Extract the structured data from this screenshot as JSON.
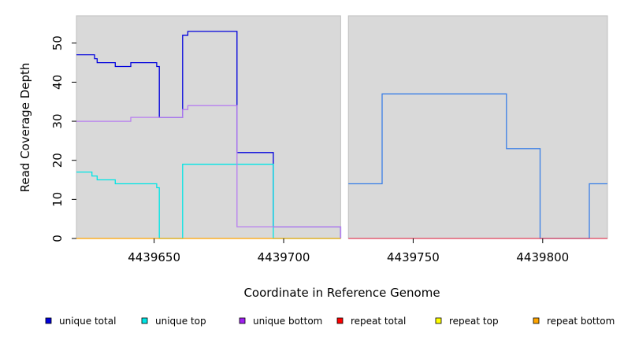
{
  "chart_data": {
    "type": "line",
    "step": true,
    "title": "",
    "xlabel": "Coordinate in Reference Genome",
    "ylabel": "Read Coverage Depth",
    "xlim": [
      4439620,
      4439825
    ],
    "ylim": [
      0,
      57
    ],
    "x_ticks": [
      4439650,
      4439700,
      4439750,
      4439800
    ],
    "y_ticks": [
      0,
      10,
      20,
      30,
      40,
      50
    ],
    "background": "#d9d9d9",
    "gap_region": [
      4439722,
      4439725
    ],
    "legend_position": "bottom",
    "legend": [
      {
        "name": "unique total",
        "color": "#0000dd"
      },
      {
        "name": "unique top",
        "color": "#00e5e5"
      },
      {
        "name": "unique bottom",
        "color": "#a020f0"
      },
      {
        "name": "repeat total",
        "color": "#ff0000"
      },
      {
        "name": "repeat top",
        "color": "#ffff00"
      },
      {
        "name": "repeat bottom",
        "color": "#ffa500"
      }
    ],
    "series": [
      {
        "key": "unique_total_left",
        "color": "#0000dd",
        "points": [
          [
            4439620,
            47
          ],
          [
            4439627,
            46
          ],
          [
            4439628,
            45
          ],
          [
            4439635,
            44
          ],
          [
            4439641,
            45
          ],
          [
            4439651,
            44
          ],
          [
            4439652,
            31
          ],
          [
            4439661,
            52
          ],
          [
            4439663,
            53
          ],
          [
            4439682,
            22
          ],
          [
            4439696,
            3
          ],
          [
            4439722,
            0
          ]
        ]
      },
      {
        "key": "unique_top_left",
        "color": "#00e5e5",
        "points": [
          [
            4439620,
            17
          ],
          [
            4439626,
            16
          ],
          [
            4439628,
            15
          ],
          [
            4439635,
            14
          ],
          [
            4439651,
            13
          ],
          [
            4439652,
            0
          ],
          [
            4439661,
            19
          ],
          [
            4439696,
            0
          ],
          [
            4439722,
            0
          ]
        ]
      },
      {
        "key": "unique_bottom_left",
        "color": "#b87ff0",
        "points": [
          [
            4439620,
            30
          ],
          [
            4439641,
            31
          ],
          [
            4439661,
            33
          ],
          [
            4439663,
            34
          ],
          [
            4439682,
            3
          ],
          [
            4439722,
            0
          ]
        ]
      },
      {
        "key": "coverage_right",
        "color": "#3a7fe6",
        "points": [
          [
            4439725,
            14
          ],
          [
            4439738,
            37
          ],
          [
            4439786,
            23
          ],
          [
            4439799,
            0
          ],
          [
            4439818,
            14
          ],
          [
            4439825,
            14
          ]
        ]
      },
      {
        "key": "repeat_bottom_left",
        "color": "#ffa500",
        "points": [
          [
            4439620,
            0
          ],
          [
            4439722,
            0
          ]
        ]
      },
      {
        "key": "repeat_total_right",
        "color": "#e0405a",
        "points": [
          [
            4439725,
            0
          ],
          [
            4439825,
            0
          ]
        ]
      }
    ]
  }
}
